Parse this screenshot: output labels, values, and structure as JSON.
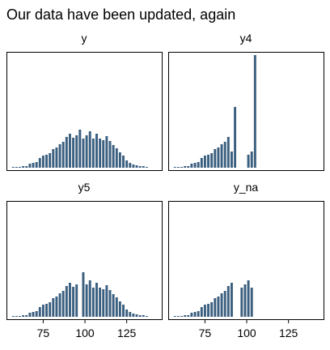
{
  "chart_data": {
    "type": "bar",
    "title": "Our data have been updated, again",
    "xlabel": "",
    "ylabel": "",
    "x_ticks": [
      75,
      100,
      125
    ],
    "xlim": [
      53,
      146
    ],
    "bin_width": 2,
    "bar_color": "#3b5f7f",
    "grid": false,
    "panels": [
      {
        "label": "y",
        "ylim": [
          0,
          140
        ],
        "bins": [
          {
            "x": 56,
            "count": 1
          },
          {
            "x": 58,
            "count": 1
          },
          {
            "x": 60,
            "count": 1
          },
          {
            "x": 62,
            "count": 2
          },
          {
            "x": 64,
            "count": 2
          },
          {
            "x": 66,
            "count": 5
          },
          {
            "x": 68,
            "count": 6
          },
          {
            "x": 70,
            "count": 7
          },
          {
            "x": 72,
            "count": 12
          },
          {
            "x": 74,
            "count": 15
          },
          {
            "x": 76,
            "count": 16
          },
          {
            "x": 78,
            "count": 18
          },
          {
            "x": 80,
            "count": 23
          },
          {
            "x": 82,
            "count": 25
          },
          {
            "x": 84,
            "count": 29
          },
          {
            "x": 86,
            "count": 32
          },
          {
            "x": 88,
            "count": 38
          },
          {
            "x": 90,
            "count": 42
          },
          {
            "x": 92,
            "count": 37
          },
          {
            "x": 94,
            "count": 40
          },
          {
            "x": 96,
            "count": 47
          },
          {
            "x": 98,
            "count": 36
          },
          {
            "x": 100,
            "count": 40
          },
          {
            "x": 102,
            "count": 45
          },
          {
            "x": 104,
            "count": 36
          },
          {
            "x": 106,
            "count": 42
          },
          {
            "x": 108,
            "count": 36
          },
          {
            "x": 110,
            "count": 34
          },
          {
            "x": 112,
            "count": 39
          },
          {
            "x": 114,
            "count": 33
          },
          {
            "x": 116,
            "count": 28
          },
          {
            "x": 118,
            "count": 24
          },
          {
            "x": 120,
            "count": 19
          },
          {
            "x": 122,
            "count": 15
          },
          {
            "x": 124,
            "count": 9
          },
          {
            "x": 126,
            "count": 6
          },
          {
            "x": 128,
            "count": 4
          },
          {
            "x": 130,
            "count": 3
          },
          {
            "x": 132,
            "count": 2
          },
          {
            "x": 134,
            "count": 2
          },
          {
            "x": 136,
            "count": 1
          }
        ]
      },
      {
        "label": "y4",
        "ylim": [
          0,
          140
        ],
        "bins": [
          {
            "x": 56,
            "count": 1
          },
          {
            "x": 58,
            "count": 1
          },
          {
            "x": 60,
            "count": 1
          },
          {
            "x": 62,
            "count": 2
          },
          {
            "x": 64,
            "count": 2
          },
          {
            "x": 66,
            "count": 5
          },
          {
            "x": 68,
            "count": 6
          },
          {
            "x": 70,
            "count": 7
          },
          {
            "x": 72,
            "count": 12
          },
          {
            "x": 74,
            "count": 15
          },
          {
            "x": 76,
            "count": 16
          },
          {
            "x": 78,
            "count": 18
          },
          {
            "x": 80,
            "count": 23
          },
          {
            "x": 82,
            "count": 25
          },
          {
            "x": 84,
            "count": 29
          },
          {
            "x": 86,
            "count": 32
          },
          {
            "x": 88,
            "count": 38
          },
          {
            "x": 90,
            "count": 20
          },
          {
            "x": 92,
            "count": 75
          },
          {
            "x": 100,
            "count": 16
          },
          {
            "x": 102,
            "count": 20
          },
          {
            "x": 104,
            "count": 139
          }
        ]
      },
      {
        "label": "y5",
        "ylim": [
          0,
          140
        ],
        "bins": [
          {
            "x": 56,
            "count": 1
          },
          {
            "x": 58,
            "count": 1
          },
          {
            "x": 60,
            "count": 1
          },
          {
            "x": 62,
            "count": 2
          },
          {
            "x": 64,
            "count": 2
          },
          {
            "x": 66,
            "count": 5
          },
          {
            "x": 68,
            "count": 6
          },
          {
            "x": 70,
            "count": 7
          },
          {
            "x": 72,
            "count": 12
          },
          {
            "x": 74,
            "count": 15
          },
          {
            "x": 76,
            "count": 16
          },
          {
            "x": 78,
            "count": 18
          },
          {
            "x": 80,
            "count": 23
          },
          {
            "x": 82,
            "count": 25
          },
          {
            "x": 84,
            "count": 29
          },
          {
            "x": 86,
            "count": 32
          },
          {
            "x": 88,
            "count": 38
          },
          {
            "x": 90,
            "count": 42
          },
          {
            "x": 92,
            "count": 37
          },
          {
            "x": 94,
            "count": 40
          },
          {
            "x": 98,
            "count": 55
          },
          {
            "x": 98,
            "count": 0
          },
          {
            "x": 100,
            "count": 40
          },
          {
            "x": 102,
            "count": 45
          },
          {
            "x": 104,
            "count": 36
          },
          {
            "x": 106,
            "count": 42
          },
          {
            "x": 108,
            "count": 36
          },
          {
            "x": 110,
            "count": 34
          },
          {
            "x": 112,
            "count": 39
          },
          {
            "x": 114,
            "count": 33
          },
          {
            "x": 116,
            "count": 28
          },
          {
            "x": 118,
            "count": 24
          },
          {
            "x": 120,
            "count": 19
          },
          {
            "x": 122,
            "count": 15
          },
          {
            "x": 124,
            "count": 9
          },
          {
            "x": 126,
            "count": 6
          },
          {
            "x": 128,
            "count": 4
          },
          {
            "x": 130,
            "count": 3
          },
          {
            "x": 132,
            "count": 2
          },
          {
            "x": 134,
            "count": 2
          },
          {
            "x": 136,
            "count": 1
          }
        ]
      },
      {
        "label": "y_na",
        "ylim": [
          0,
          140
        ],
        "bins": [
          {
            "x": 56,
            "count": 1
          },
          {
            "x": 58,
            "count": 1
          },
          {
            "x": 60,
            "count": 1
          },
          {
            "x": 62,
            "count": 2
          },
          {
            "x": 64,
            "count": 2
          },
          {
            "x": 66,
            "count": 5
          },
          {
            "x": 68,
            "count": 6
          },
          {
            "x": 70,
            "count": 7
          },
          {
            "x": 72,
            "count": 12
          },
          {
            "x": 74,
            "count": 15
          },
          {
            "x": 76,
            "count": 16
          },
          {
            "x": 78,
            "count": 18
          },
          {
            "x": 80,
            "count": 23
          },
          {
            "x": 82,
            "count": 25
          },
          {
            "x": 84,
            "count": 29
          },
          {
            "x": 86,
            "count": 32
          },
          {
            "x": 88,
            "count": 38
          },
          {
            "x": 90,
            "count": 42
          },
          {
            "x": 96,
            "count": 36
          },
          {
            "x": 98,
            "count": 40
          },
          {
            "x": 100,
            "count": 45
          },
          {
            "x": 102,
            "count": 36
          }
        ]
      }
    ]
  }
}
